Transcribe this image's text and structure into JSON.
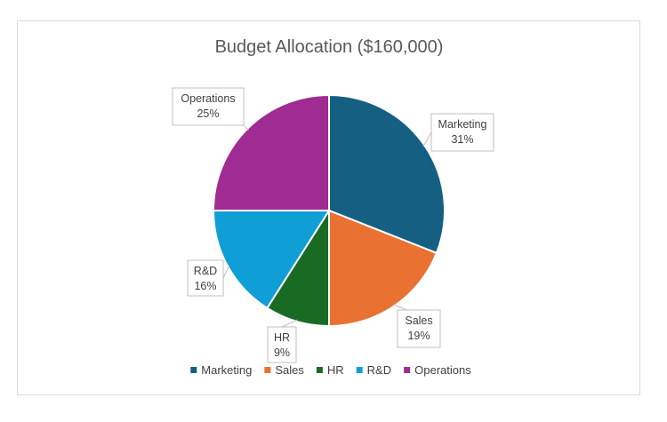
{
  "chart_data": {
    "type": "pie",
    "title": "Budget Allocation ($160,000)",
    "categories": [
      "Marketing",
      "Sales",
      "HR",
      "R&D",
      "Operations"
    ],
    "values": [
      31,
      19,
      9,
      16,
      25
    ],
    "value_format": "percent",
    "colors": [
      "#156082",
      "#E97132",
      "#196B24",
      "#0F9ED5",
      "#A02B93"
    ],
    "legend_position": "bottom",
    "data_labels": [
      {
        "category": "Marketing",
        "text": "31%"
      },
      {
        "category": "Sales",
        "text": "19%"
      },
      {
        "category": "HR",
        "text": "9%"
      },
      {
        "category": "R&D",
        "text": "16%"
      },
      {
        "category": "Operations",
        "text": "25%"
      }
    ]
  }
}
